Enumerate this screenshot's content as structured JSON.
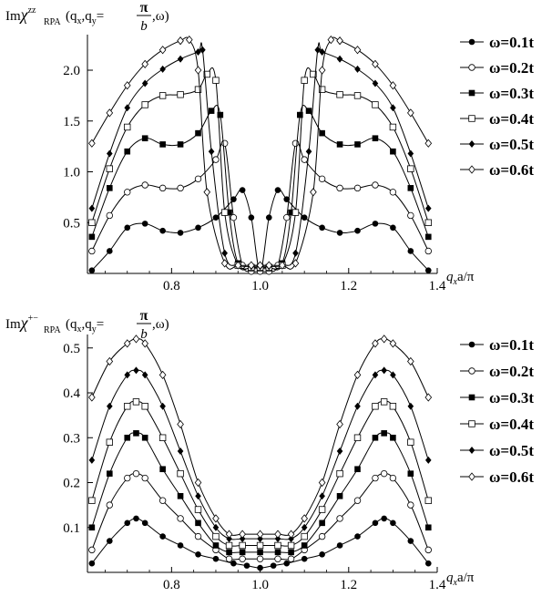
{
  "panels": [
    {
      "title_prefix": "Im",
      "chi": "χ",
      "chi_sup": "zz",
      "chi_sub": "RPA",
      "args_main": "(q",
      "args_qx_sub": "x",
      "args_mid": ",q",
      "args_qy_sub": "y",
      "args_eq": "=",
      "frac_num": "π",
      "frac_den": "b",
      "args_end": ",ω)"
    },
    {
      "title_prefix": "Im",
      "chi": "χ",
      "chi_sup": "+−",
      "chi_sub": "RPA",
      "args_main": "(q",
      "args_qx_sub": "x",
      "args_mid": ",q",
      "args_qy_sub": "y",
      "args_eq": "=",
      "frac_num": "π",
      "frac_den": "b",
      "args_end": ",ω)"
    }
  ],
  "xlabel": {
    "q": "q",
    "sub": "x",
    "rest": "a/π"
  },
  "legend_labels": [
    "ω=0.1t",
    "ω=0.2t",
    "ω=0.3t",
    "ω=0.4t",
    "ω=0.5t",
    "ω=0.6t"
  ],
  "chart_data": [
    {
      "type": "line",
      "xlabel": "q_x a/π",
      "ylabel": "Im χ^zz_RPA(q_x, q_y=π/b, ω)",
      "xlim": [
        0.61,
        1.4
      ],
      "ylim": [
        0,
        2.35
      ],
      "x_ticks": [
        "0.8",
        "1.0",
        "1.2",
        "1.4"
      ],
      "y_ticks": [
        "0.5",
        "1.0",
        "1.5",
        "2.0"
      ],
      "legend": "right",
      "series": [
        {
          "name": "ω=0.1t",
          "marker": "filled-circle",
          "x": [
            0.62,
            0.66,
            0.7,
            0.74,
            0.78,
            0.82,
            0.86,
            0.9,
            0.94,
            0.96,
            0.98,
            1.0
          ],
          "y": [
            0.03,
            0.22,
            0.45,
            0.49,
            0.42,
            0.4,
            0.45,
            0.55,
            0.73,
            0.82,
            0.55,
            0.02
          ]
        },
        {
          "name": "ω=0.2t",
          "marker": "open-circle",
          "x": [
            0.62,
            0.66,
            0.7,
            0.74,
            0.78,
            0.82,
            0.86,
            0.9,
            0.92,
            0.94,
            0.96,
            0.98,
            1.0
          ],
          "y": [
            0.22,
            0.57,
            0.8,
            0.87,
            0.84,
            0.84,
            0.93,
            1.12,
            1.28,
            0.55,
            0.08,
            0.02,
            0.02
          ]
        },
        {
          "name": "ω=0.3t",
          "marker": "filled-square",
          "x": [
            0.62,
            0.66,
            0.7,
            0.74,
            0.78,
            0.82,
            0.86,
            0.89,
            0.91,
            0.93,
            0.95,
            0.98,
            1.0
          ],
          "y": [
            0.36,
            0.84,
            1.2,
            1.33,
            1.27,
            1.27,
            1.38,
            1.6,
            1.56,
            0.6,
            0.1,
            0.05,
            0.05
          ]
        },
        {
          "name": "ω=0.4t",
          "marker": "open-square",
          "x": [
            0.62,
            0.66,
            0.7,
            0.74,
            0.78,
            0.82,
            0.86,
            0.88,
            0.9,
            0.92,
            0.95,
            0.98,
            1.0
          ],
          "y": [
            0.5,
            1.03,
            1.44,
            1.66,
            1.75,
            1.76,
            1.81,
            1.96,
            1.9,
            0.6,
            0.08,
            0.06,
            0.06
          ]
        },
        {
          "name": "ω=0.5t",
          "marker": "filled-diamond",
          "x": [
            0.62,
            0.66,
            0.7,
            0.74,
            0.78,
            0.82,
            0.86,
            0.87,
            0.89,
            0.92,
            0.95,
            0.98,
            1.0
          ],
          "y": [
            0.64,
            1.18,
            1.63,
            1.87,
            2.01,
            2.11,
            2.18,
            2.2,
            1.2,
            0.2,
            0.08,
            0.07,
            0.07
          ]
        },
        {
          "name": "ω=0.6t",
          "marker": "open-diamond",
          "x": [
            0.62,
            0.66,
            0.7,
            0.74,
            0.78,
            0.82,
            0.84,
            0.86,
            0.88,
            0.92,
            0.95,
            0.98,
            1.0
          ],
          "y": [
            1.28,
            1.58,
            1.85,
            2.06,
            2.2,
            2.29,
            2.3,
            2.0,
            0.8,
            0.1,
            0.08,
            0.08,
            0.08
          ]
        }
      ]
    },
    {
      "type": "line",
      "xlabel": "q_x a/π",
      "ylabel": "Im χ^+−_RPA(q_x, q_y=π/b, ω)",
      "xlim": [
        0.61,
        1.4
      ],
      "ylim": [
        0,
        0.53
      ],
      "x_ticks": [
        "0.8",
        "1.0",
        "1.2",
        "1.4"
      ],
      "y_ticks": [
        "0.1",
        "0.2",
        "0.3",
        "0.4",
        "0.5"
      ],
      "legend": "right",
      "series": [
        {
          "name": "ω=0.1t",
          "marker": "filled-circle",
          "x": [
            0.62,
            0.66,
            0.7,
            0.72,
            0.74,
            0.78,
            0.82,
            0.86,
            0.9,
            0.94,
            0.97,
            1.0
          ],
          "y": [
            0.02,
            0.07,
            0.11,
            0.12,
            0.11,
            0.08,
            0.06,
            0.04,
            0.03,
            0.02,
            0.015,
            0.01
          ]
        },
        {
          "name": "ω=0.2t",
          "marker": "open-circle",
          "x": [
            0.62,
            0.66,
            0.7,
            0.72,
            0.74,
            0.78,
            0.82,
            0.86,
            0.9,
            0.93,
            0.96,
            1.0
          ],
          "y": [
            0.05,
            0.15,
            0.21,
            0.22,
            0.21,
            0.16,
            0.12,
            0.08,
            0.05,
            0.03,
            0.03,
            0.03
          ]
        },
        {
          "name": "ω=0.3t",
          "marker": "filled-square",
          "x": [
            0.62,
            0.66,
            0.7,
            0.72,
            0.74,
            0.78,
            0.82,
            0.86,
            0.9,
            0.93,
            0.96,
            1.0
          ],
          "y": [
            0.1,
            0.22,
            0.3,
            0.31,
            0.3,
            0.23,
            0.17,
            0.11,
            0.06,
            0.045,
            0.045,
            0.045
          ]
        },
        {
          "name": "ω=0.4t",
          "marker": "open-square",
          "x": [
            0.62,
            0.66,
            0.7,
            0.72,
            0.74,
            0.78,
            0.82,
            0.86,
            0.9,
            0.93,
            0.96,
            1.0
          ],
          "y": [
            0.16,
            0.29,
            0.37,
            0.38,
            0.37,
            0.3,
            0.22,
            0.14,
            0.08,
            0.06,
            0.06,
            0.06
          ]
        },
        {
          "name": "ω=0.5t",
          "marker": "filled-diamond",
          "x": [
            0.62,
            0.66,
            0.7,
            0.72,
            0.74,
            0.78,
            0.82,
            0.86,
            0.9,
            0.93,
            0.96,
            1.0
          ],
          "y": [
            0.25,
            0.37,
            0.44,
            0.45,
            0.44,
            0.37,
            0.27,
            0.17,
            0.1,
            0.075,
            0.075,
            0.075
          ]
        },
        {
          "name": "ω=0.6t",
          "marker": "open-diamond",
          "x": [
            0.62,
            0.66,
            0.7,
            0.72,
            0.74,
            0.78,
            0.82,
            0.86,
            0.9,
            0.93,
            0.96,
            1.0
          ],
          "y": [
            0.39,
            0.47,
            0.51,
            0.52,
            0.51,
            0.44,
            0.33,
            0.2,
            0.12,
            0.085,
            0.085,
            0.085
          ]
        }
      ]
    }
  ]
}
